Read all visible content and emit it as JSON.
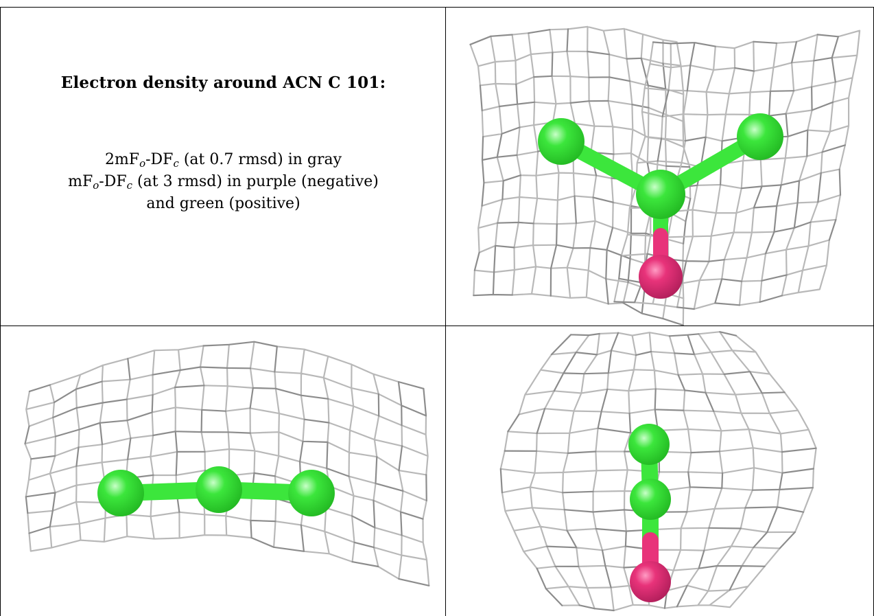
{
  "legend": {
    "title": "Electron density around ACN C 101:",
    "line1": {
      "prefix": "2mF",
      "sub_o": "o",
      "mid": "-DF",
      "sub_c": "c",
      "suffix": " (at 0.7 rmsd) in gray"
    },
    "line2": {
      "prefix": "mF",
      "sub_o": "o",
      "mid": "-DF",
      "sub_c": "c",
      "suffix": " (at 3 rmsd) in purple (negative)"
    },
    "line3": "and green (positive)"
  },
  "colors": {
    "mesh": "#b8b8b8",
    "mesh_dark": "#8c8c8c",
    "carbon": "#3ce63c",
    "carbon_shade": "#22b822",
    "nitrogen": "#e8337a",
    "nitrogen_shade": "#b01e5a",
    "border": "#000000"
  },
  "views": [
    {
      "name": "top-right view",
      "atoms": [
        "C",
        "C",
        "C",
        "N"
      ]
    },
    {
      "name": "bottom-left view",
      "atoms": [
        "C",
        "C",
        "C"
      ]
    },
    {
      "name": "bottom-right view",
      "atoms": [
        "C",
        "C",
        "N"
      ]
    }
  ]
}
